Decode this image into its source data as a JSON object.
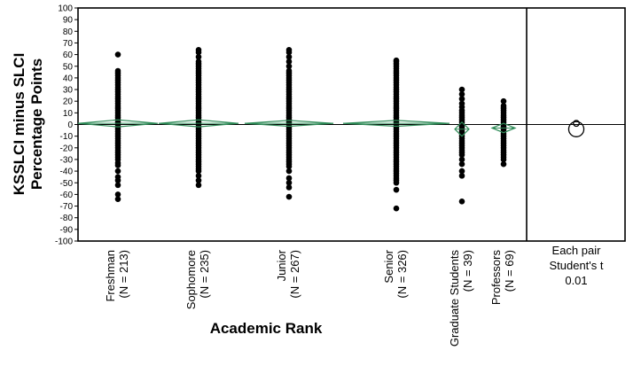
{
  "chart_data": {
    "type": "scatter",
    "ylabel_line1": "KSSLCI minus SLCI",
    "ylabel_line2": "Percentage Points",
    "xlabel": "Academic Rank",
    "ylim": [
      -100,
      100
    ],
    "yticks": [
      100,
      90,
      80,
      70,
      60,
      50,
      40,
      30,
      20,
      10,
      0,
      -10,
      -20,
      -30,
      -40,
      -50,
      -60,
      -70,
      -80,
      -90,
      -100
    ],
    "reference_line": 0,
    "grid": false,
    "categories": [
      {
        "name": "Freshman",
        "n_label": "(N = 213)",
        "mean": 1,
        "ci_halfwidth": 3,
        "points": [
          60,
          46,
          44,
          42,
          40,
          38,
          36,
          34,
          32,
          30,
          28,
          26,
          24,
          22,
          20,
          18,
          16,
          14,
          12,
          10,
          8,
          6,
          4,
          2,
          0,
          -2,
          -4,
          -6,
          -8,
          -10,
          -12,
          -14,
          -16,
          -18,
          -20,
          -22,
          -24,
          -26,
          -28,
          -30,
          -33,
          -35,
          -40,
          -45,
          -48,
          -52,
          -60,
          -64
        ]
      },
      {
        "name": "Sophomore",
        "n_label": "(N = 235)",
        "mean": 1,
        "ci_halfwidth": 3,
        "points": [
          64,
          62,
          58,
          54,
          52,
          50,
          48,
          46,
          44,
          42,
          40,
          38,
          36,
          34,
          32,
          30,
          28,
          26,
          24,
          22,
          20,
          18,
          16,
          14,
          12,
          10,
          8,
          6,
          4,
          2,
          0,
          -2,
          -4,
          -6,
          -8,
          -10,
          -12,
          -14,
          -16,
          -18,
          -20,
          -22,
          -24,
          -26,
          -28,
          -30,
          -32,
          -34,
          -36,
          -38,
          -40,
          -44,
          -48,
          -52
        ]
      },
      {
        "name": "Junior",
        "n_label": "(N = 267)",
        "mean": 1,
        "ci_halfwidth": 2.5,
        "points": [
          64,
          62,
          58,
          54,
          50,
          46,
          44,
          42,
          40,
          38,
          36,
          34,
          32,
          30,
          28,
          26,
          24,
          22,
          20,
          18,
          16,
          14,
          12,
          10,
          8,
          6,
          4,
          2,
          0,
          -2,
          -4,
          -6,
          -8,
          -10,
          -12,
          -14,
          -16,
          -18,
          -20,
          -22,
          -24,
          -26,
          -28,
          -30,
          -32,
          -34,
          -36,
          -40,
          -46,
          -50,
          -54,
          -62
        ]
      },
      {
        "name": "Senior",
        "n_label": "(N = 326)",
        "mean": 1,
        "ci_halfwidth": 2.5,
        "points": [
          55,
          54,
          52,
          50,
          48,
          46,
          44,
          42,
          40,
          38,
          36,
          34,
          32,
          30,
          28,
          26,
          24,
          22,
          20,
          18,
          16,
          14,
          12,
          10,
          8,
          6,
          4,
          2,
          0,
          -2,
          -4,
          -6,
          -8,
          -10,
          -12,
          -14,
          -16,
          -18,
          -20,
          -22,
          -24,
          -26,
          -28,
          -30,
          -32,
          -34,
          -36,
          -38,
          -40,
          -42,
          -44,
          -46,
          -48,
          -50,
          -56,
          -72
        ]
      },
      {
        "name": "Graduate Students",
        "n_label": "(N = 39)",
        "mean": -4,
        "ci_halfwidth": 6,
        "points": [
          30,
          26,
          22,
          18,
          15,
          12,
          10,
          8,
          6,
          4,
          2,
          0,
          -2,
          -4,
          -6,
          -8,
          -10,
          -12,
          -14,
          -16,
          -18,
          -20,
          -22,
          -24,
          -26,
          -30,
          -34,
          -40,
          -44,
          -66
        ]
      },
      {
        "name": "Professors",
        "n_label": "(N = 69)",
        "mean": -3,
        "ci_halfwidth": 4,
        "points": [
          20,
          16,
          14,
          12,
          10,
          8,
          6,
          4,
          2,
          0,
          -2,
          -4,
          -6,
          -8,
          -10,
          -12,
          -14,
          -16,
          -18,
          -20,
          -22,
          -24,
          -26,
          -28,
          -30,
          -34
        ]
      }
    ],
    "comparison_panel": {
      "lines": [
        "Each pair",
        "Student's t",
        "0.01"
      ],
      "circles": [
        {
          "center": 1,
          "radius": 2.5
        },
        {
          "center": -4,
          "radius": 6.5
        }
      ]
    }
  }
}
